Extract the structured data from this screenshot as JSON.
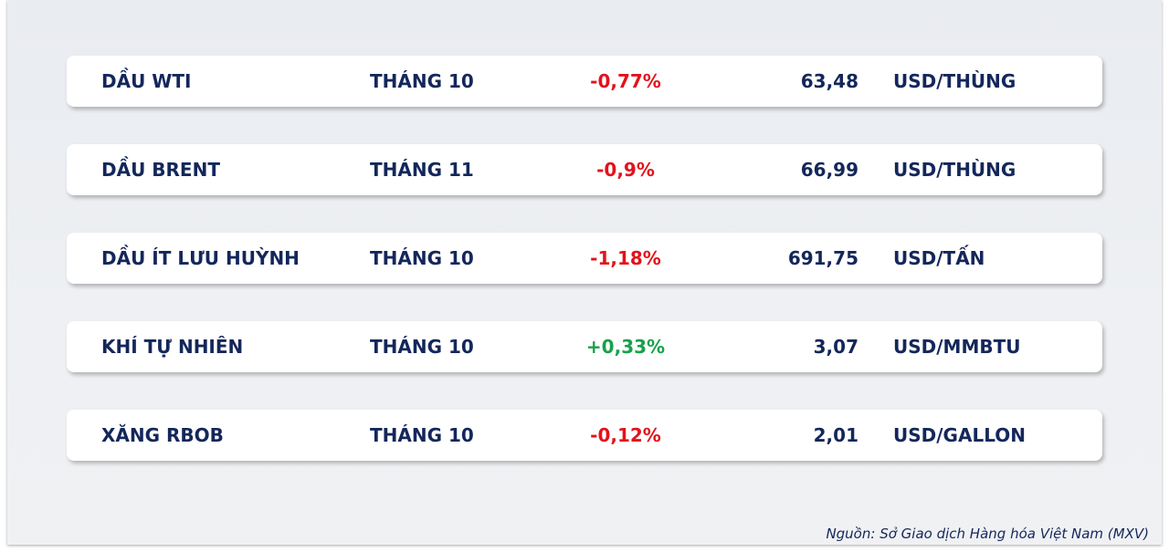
{
  "table": {
    "rows": [
      [
        "DẦU WTI",
        "THÁNG 10",
        "-0,77%",
        "63,48",
        "USD/THÙNG"
      ],
      [
        "DẦU BRENT",
        "THÁNG 11",
        "-0,9%",
        "66,99",
        "USD/THÙNG"
      ],
      [
        "DẦU ÍT LƯU HUỲNH",
        "THÁNG 10",
        "-1,18%",
        "691,75",
        "USD/TẤN"
      ],
      [
        "KHÍ TỰ NHIÊN",
        "THÁNG 10",
        "+0,33%",
        "3,07",
        "USD/MMBTU"
      ],
      [
        "XĂNG RBOB",
        "THÁNG 10",
        "-0,12%",
        "2,01",
        "USD/GALLON"
      ]
    ],
    "change_colors": {
      "up": "#17a14a",
      "down": "#e3121b"
    }
  },
  "footer": {
    "source": "Nguồn: Sở Giao dịch Hàng hóa Việt Nam (MXV)"
  }
}
